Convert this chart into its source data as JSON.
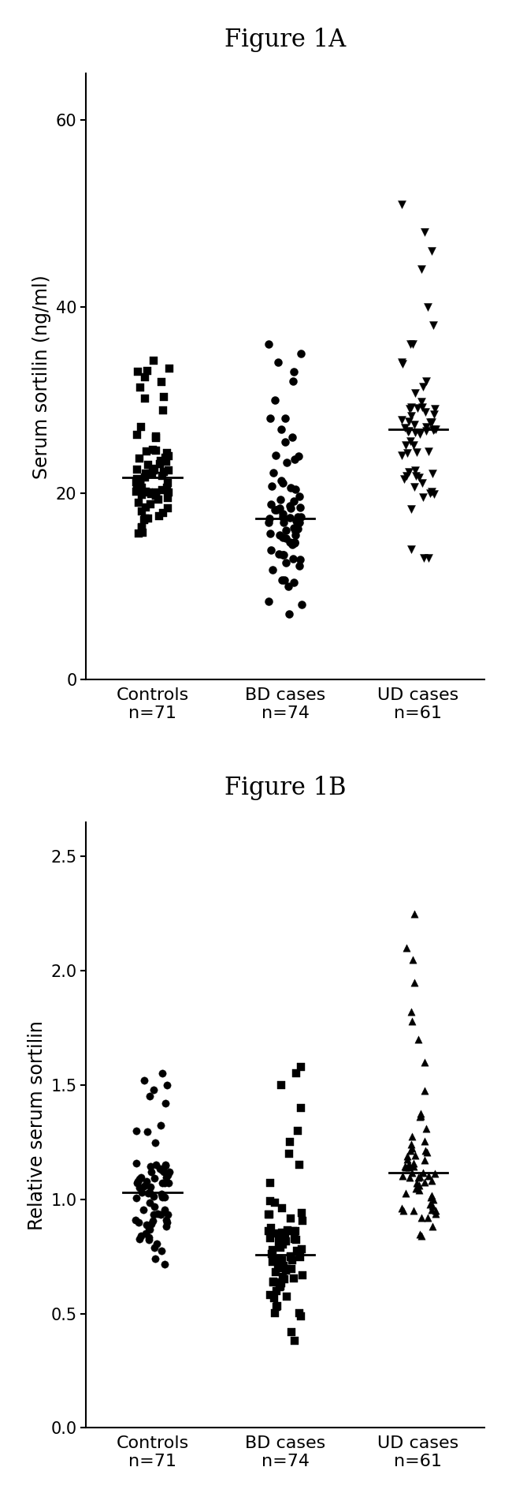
{
  "fig_title_A": "Figure 1A",
  "fig_title_B": "Figure 1B",
  "ylabel_A": "Serum sortilin (ng/ml)",
  "ylabel_B": "Relative serum sortilin",
  "ylim_A": [
    0,
    65
  ],
  "ylim_B": [
    0.0,
    2.65
  ],
  "yticks_A": [
    0,
    20,
    40,
    60
  ],
  "yticks_B": [
    0.0,
    0.5,
    1.0,
    1.5,
    2.0,
    2.5
  ],
  "categories": [
    "Controls\nn=71",
    "BD cases\nn=74",
    "UD cases\nn=61"
  ],
  "background_color": "#ffffff",
  "point_color": "#000000",
  "median_color": "#000000",
  "seed": 42,
  "controls_n": 71,
  "bd_n": 74,
  "ud_n": 61,
  "marker_A": [
    "s",
    "o",
    "v"
  ],
  "marker_B": [
    "o",
    "s",
    "^"
  ],
  "markersize_A": 52,
  "markersize_B": 45,
  "jitter_strength": 0.13,
  "title_fontsize": 22,
  "label_fontsize": 17,
  "tick_fontsize": 15,
  "xtick_fontsize": 16
}
